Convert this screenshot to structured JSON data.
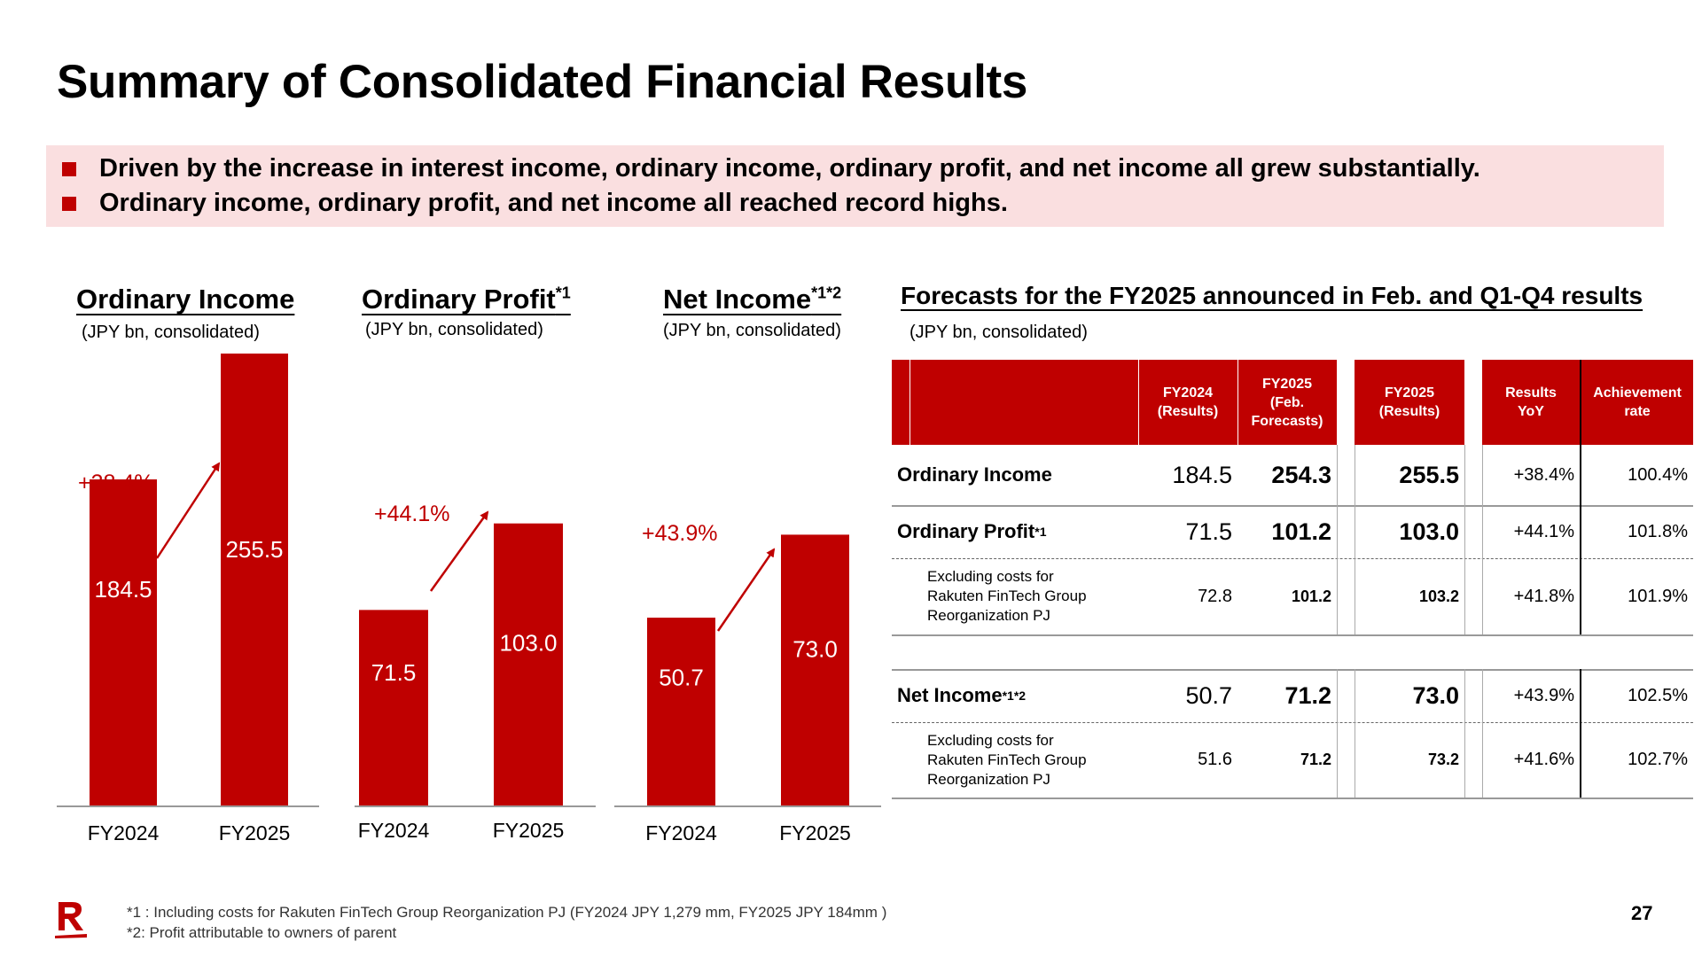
{
  "title": "Summary of Consolidated Financial Results",
  "highlights": [
    "Driven by the increase in interest income, ordinary income, ordinary profit, and net income all grew substantially.",
    "Ordinary income, ordinary profit, and net income all reached record highs."
  ],
  "colors": {
    "accent": "#bf0000",
    "highlight_bg": "#fadfe0"
  },
  "chart_data": [
    {
      "type": "bar",
      "title": "Ordinary Income",
      "unit": "(JPY bn, consolidated)",
      "categories": [
        "FY2024",
        "FY2025"
      ],
      "values": [
        184.5,
        255.5
      ],
      "growth_label": "+38.4%"
    },
    {
      "type": "bar",
      "title": "Ordinary Profit",
      "title_sup": "*1",
      "unit": "(JPY bn, consolidated)",
      "categories": [
        "FY2024",
        "FY2025"
      ],
      "values": [
        71.5,
        103.0
      ],
      "growth_label": "+44.1%"
    },
    {
      "type": "bar",
      "title": "Net Income",
      "title_sup": "*1*2",
      "unit": "(JPY bn, consolidated)",
      "categories": [
        "FY2024",
        "FY2025"
      ],
      "values": [
        50.7,
        73.0
      ],
      "growth_label": "+43.9%"
    },
    {
      "type": "table",
      "title": "Forecasts for the FY2025 announced in Feb. and Q1-Q4 results",
      "unit": "(JPY bn, consolidated)",
      "columns": [
        "FY2024\n(Results)",
        "FY2025\n(Feb.\nForecasts)",
        "FY2025\n(Results)",
        "Results\nYoY",
        "Achievement\nrate"
      ],
      "rows": [
        {
          "label": "Ordinary Income",
          "sup": "",
          "values": [
            "184.5",
            "254.3",
            "255.5",
            "+38.4%",
            "100.4%"
          ]
        },
        {
          "label": "Ordinary Profit",
          "sup": "*1",
          "values": [
            "71.5",
            "101.2",
            "103.0",
            "+44.1%",
            "101.8%"
          ]
        },
        {
          "label": "Excluding costs for\nRakuten FinTech Group\nReorganization PJ",
          "sup": "",
          "values": [
            "72.8",
            "101.2",
            "103.2",
            "+41.8%",
            "101.9%"
          ]
        },
        {
          "label": "Net Income",
          "sup": "*1*2",
          "values": [
            "50.7",
            "71.2",
            "73.0",
            "+43.9%",
            "102.5%"
          ]
        },
        {
          "label": "Excluding costs for\nRakuten FinTech Group\nReorganization PJ",
          "sup": "",
          "values": [
            "51.6",
            "71.2",
            "73.2",
            "+41.6%",
            "102.7%"
          ]
        }
      ]
    }
  ],
  "footnotes": [
    "*1 : Including costs for Rakuten FinTech Group Reorganization PJ (FY2024 JPY 1,279 mm, FY2025 JPY 184mm )",
    "*2: Profit attributable to owners of parent"
  ],
  "page_number": "27",
  "logo_icon": "rakuten-r-logo-icon"
}
